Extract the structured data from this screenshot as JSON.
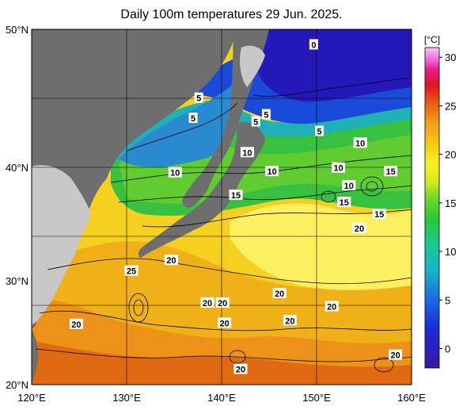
{
  "title": "Daily 100m temperatures 29 Jun. 2025.",
  "colorbar": {
    "unit_label": "[°C]",
    "ticks": [
      "0",
      "5",
      "10",
      "15",
      "20",
      "25",
      "30"
    ],
    "range": [
      -2,
      31
    ],
    "colors": [
      "#3a1aa0",
      "#1a2ad8",
      "#1a6fe0",
      "#1ab0c8",
      "#18c89a",
      "#28c83a",
      "#6ad82a",
      "#d8e820",
      "#f8f020",
      "#f8c818",
      "#f09a18",
      "#e85a10",
      "#e01818",
      "#e81a8a",
      "#f080e8",
      "#f8c8f8"
    ]
  },
  "axes": {
    "lon_labels": [
      "120°E",
      "130°E",
      "140°E",
      "150°E",
      "160°E"
    ],
    "lat_labels": [
      "20°N",
      "30°N",
      "40°N",
      "50°N"
    ]
  },
  "contour_labels": [
    {
      "text": "0",
      "lon": 149.7,
      "lat": 48.7
    },
    {
      "text": "5",
      "lon": 137.6,
      "lat": 44.2
    },
    {
      "text": "5",
      "lon": 137.0,
      "lat": 42.5
    },
    {
      "text": "5",
      "lon": 144.7,
      "lat": 42.8
    },
    {
      "text": "5",
      "lon": 143.6,
      "lat": 42.2
    },
    {
      "text": "5",
      "lon": 150.3,
      "lat": 41.4
    },
    {
      "text": "10",
      "lon": 154.6,
      "lat": 40.4
    },
    {
      "text": "10",
      "lon": 142.7,
      "lat": 39.6
    },
    {
      "text": "10",
      "lon": 135.1,
      "lat": 37.9
    },
    {
      "text": "10",
      "lon": 145.3,
      "lat": 38.0
    },
    {
      "text": "10",
      "lon": 152.3,
      "lat": 38.3
    },
    {
      "text": "15",
      "lon": 157.8,
      "lat": 38.0
    },
    {
      "text": "10",
      "lon": 153.4,
      "lat": 36.8
    },
    {
      "text": "15",
      "lon": 141.5,
      "lat": 36.0
    },
    {
      "text": "15",
      "lon": 152.9,
      "lat": 35.4
    },
    {
      "text": "15",
      "lon": 156.6,
      "lat": 34.4
    },
    {
      "text": "20",
      "lon": 154.5,
      "lat": 33.2
    },
    {
      "text": "20",
      "lon": 134.7,
      "lat": 30.5
    },
    {
      "text": "25",
      "lon": 130.5,
      "lat": 29.6
    },
    {
      "text": "20",
      "lon": 146.1,
      "lat": 27.7
    },
    {
      "text": "20",
      "lon": 138.5,
      "lat": 26.9
    },
    {
      "text": "20",
      "lon": 140.1,
      "lat": 26.9
    },
    {
      "text": "20",
      "lon": 151.6,
      "lat": 26.6
    },
    {
      "text": "20",
      "lon": 124.7,
      "lat": 25.1
    },
    {
      "text": "20",
      "lon": 140.3,
      "lat": 25.2
    },
    {
      "text": "20",
      "lon": 147.2,
      "lat": 25.4
    },
    {
      "text": "20",
      "lon": 158.3,
      "lat": 22.5
    },
    {
      "text": "20",
      "lon": 142.0,
      "lat": 21.3
    }
  ]
}
